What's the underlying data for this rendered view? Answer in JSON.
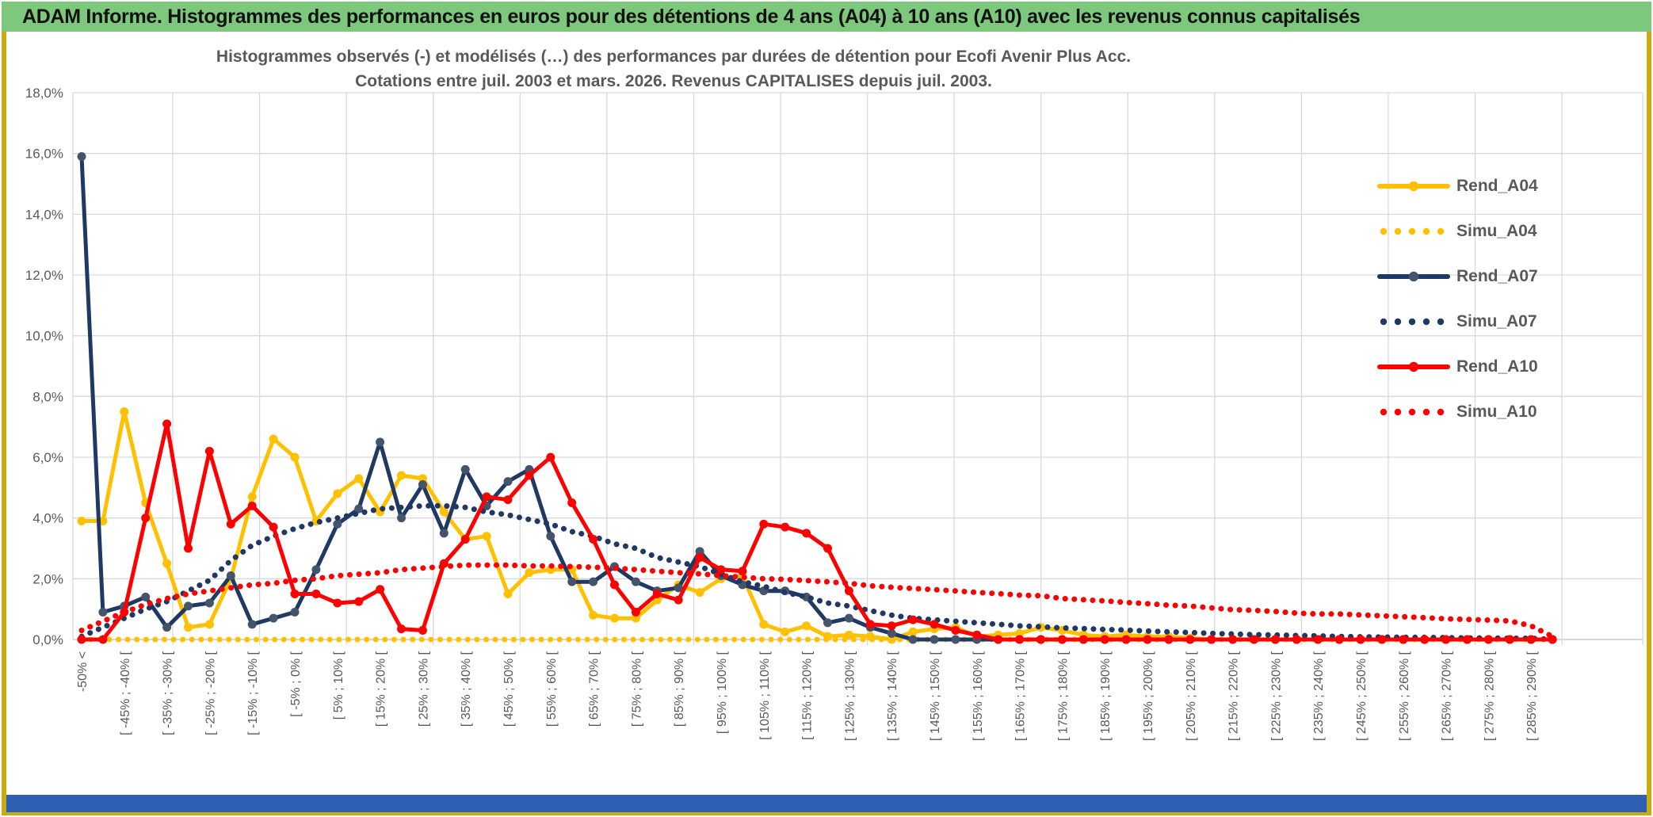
{
  "window": {
    "title": "ADAM Informe. Histogrammes des performances en euros pour des détentions de 4 ans (A04) à 10 ans (A10) avec les revenus connus capitalisés"
  },
  "colors": {
    "header_bg": "#7dc87d",
    "frame": "#c9ac14",
    "footer_bar": "#2f5fb3",
    "grid": "#d9d9d9",
    "axis_line": "#bfbfbf",
    "text": "#595959",
    "gold": "#FFC000",
    "navy": "#1F3864",
    "navy_marker": "#44546A",
    "red": "#FF0000"
  },
  "legend": {
    "items": [
      {
        "label": "Rend_A04",
        "style": "solid",
        "color": "#FFC000",
        "marker": "#FFC000"
      },
      {
        "label": "Simu_A04",
        "style": "dotted",
        "color": "#FFC000"
      },
      {
        "label": "Rend_A07",
        "style": "solid",
        "color": "#1F3864",
        "marker": "#44546A"
      },
      {
        "label": "Simu_A07",
        "style": "dotted",
        "color": "#1F3864"
      },
      {
        "label": "Rend_A10",
        "style": "solid",
        "color": "#FF0000",
        "marker": "#FF0000"
      },
      {
        "label": "Simu_A10",
        "style": "dotted",
        "color": "#FF0000"
      }
    ]
  },
  "chart_data": {
    "type": "line",
    "title_line1": "Histogrammes observés (-) et modélisés (…) des performances par durées de détention pour Ecofi Avenir Plus Acc.",
    "title_line2": "Cotations entre juil. 2003 et mars. 2026. Revenus CAPITALISES depuis juil. 2003.",
    "ylabel": "",
    "xlabel": "",
    "ylim": [
      0,
      18
    ],
    "y_tick_step_percent": 2,
    "y_tick_labels": [
      "0,0%",
      "2,0%",
      "4,0%",
      "6,0%",
      "8,0%",
      "10,0%",
      "12,0%",
      "14,0%",
      "16,0%",
      "18,0%"
    ],
    "grid": true,
    "legend_position": "right-inside",
    "n_bins": 70,
    "x_labels_every": 2,
    "x_labels": [
      "-50% <",
      "[ -45% ; -40% [",
      "[ -35% ; -30% [",
      "[ -25% ; -20% [",
      "[ -15% ; -10% [",
      "[ -5% ; 0% [",
      "[ 5% ; 10% [",
      "[ 15% ; 20% [",
      "[ 25% ; 30% [",
      "[ 35% ; 40% [",
      "[ 45% ; 50% [",
      "[ 55% ; 60% [",
      "[ 65% ; 70% [",
      "[ 75% ; 80% [",
      "[ 85% ; 90% [",
      "[ 95% ; 100% [",
      "[ 105% ; 110% [",
      "[ 115% ; 120% [",
      "[ 125% ; 130% [",
      "[ 135% ; 140% [",
      "[ 145% ; 150% [",
      "[ 155% ; 160% [",
      "[ 165% ; 170% [",
      "[ 175% ; 180% [",
      "[ 185% ; 190% [",
      "[ 195% ; 200% [",
      "[ 205% ; 210% [",
      "[ 215% ; 220% [",
      "[ 225% ; 230% [",
      "[ 235% ; 240% [",
      "[ 245% ; 250% [",
      "[ 255% ; 260% [",
      "[ 265% ; 270% [",
      "[ 275% ; 280% [",
      "[ 285% ; 290% ["
    ],
    "series": [
      {
        "name": "Rend_A04",
        "style": "solid",
        "color": "#FFC000",
        "marker": "#FFC000",
        "values": [
          3.9,
          3.9,
          7.5,
          4.5,
          2.5,
          0.4,
          0.5,
          2.0,
          4.7,
          6.6,
          6.0,
          3.9,
          4.8,
          5.3,
          4.2,
          5.4,
          5.3,
          4.2,
          3.3,
          3.4,
          1.5,
          2.2,
          2.3,
          2.3,
          0.8,
          0.7,
          0.7,
          1.3,
          1.8,
          1.55,
          2.0,
          2.1,
          0.5,
          0.25,
          0.45,
          0.1,
          0.15,
          0.1,
          0.0,
          0.25,
          0.35,
          0.4,
          0.1,
          0.15,
          0.2,
          0.4,
          0.3,
          0.15,
          0.1,
          0.15,
          0.1,
          0.1,
          0.05,
          0,
          0,
          0,
          0,
          0,
          0,
          0,
          0,
          0,
          0,
          0,
          0,
          0,
          0,
          0,
          0,
          0
        ]
      },
      {
        "name": "Simu_A04",
        "style": "dotted",
        "color": "#FFC000",
        "values": [
          0,
          0,
          0,
          0,
          0,
          0,
          0,
          0,
          0,
          0,
          0,
          0,
          0,
          0,
          0,
          0,
          0,
          0,
          0,
          0,
          0,
          0,
          0,
          0,
          0,
          0,
          0,
          0,
          0,
          0,
          0,
          0,
          0,
          0,
          0,
          0,
          0,
          0,
          0,
          0,
          0,
          0,
          0,
          0,
          0,
          0,
          0,
          0,
          0,
          0,
          0,
          0,
          0,
          0,
          0,
          0,
          0,
          0,
          0,
          0,
          0,
          0,
          0,
          0,
          0,
          0,
          0,
          0,
          0,
          0
        ]
      },
      {
        "name": "Rend_A07",
        "style": "solid",
        "color": "#1F3864",
        "marker": "#44546A",
        "values": [
          15.9,
          0.9,
          1.1,
          1.4,
          0.4,
          1.1,
          1.2,
          2.1,
          0.5,
          0.7,
          0.9,
          2.3,
          3.8,
          4.3,
          6.5,
          4.0,
          5.1,
          3.5,
          5.6,
          4.4,
          5.2,
          5.6,
          3.4,
          1.9,
          1.9,
          2.4,
          1.9,
          1.6,
          1.7,
          2.9,
          2.1,
          1.8,
          1.6,
          1.6,
          1.4,
          0.55,
          0.7,
          0.4,
          0.2,
          0,
          0,
          0,
          0,
          0,
          0,
          0,
          0,
          0,
          0,
          0,
          0,
          0,
          0,
          0,
          0,
          0,
          0,
          0,
          0,
          0,
          0,
          0,
          0,
          0,
          0,
          0,
          0,
          0,
          0,
          0
        ]
      },
      {
        "name": "Simu_A07",
        "style": "dotted",
        "color": "#1F3864",
        "values": [
          0.1,
          0.4,
          0.7,
          1.0,
          1.25,
          1.6,
          1.95,
          2.6,
          3.1,
          3.4,
          3.65,
          3.85,
          4.0,
          4.15,
          4.3,
          4.35,
          4.4,
          4.4,
          4.35,
          4.2,
          4.1,
          3.95,
          3.8,
          3.55,
          3.4,
          3.15,
          3.0,
          2.7,
          2.55,
          2.4,
          2.15,
          1.9,
          1.75,
          1.55,
          1.4,
          1.2,
          1.1,
          0.95,
          0.8,
          0.7,
          0.65,
          0.6,
          0.55,
          0.5,
          0.45,
          0.42,
          0.38,
          0.36,
          0.33,
          0.31,
          0.28,
          0.25,
          0.23,
          0.2,
          0.18,
          0.16,
          0.15,
          0.13,
          0.12,
          0.1,
          0.09,
          0.08,
          0.07,
          0.07,
          0.06,
          0.05,
          0.05,
          0.04,
          0.04,
          0.0
        ]
      },
      {
        "name": "Rend_A10",
        "style": "solid",
        "color": "#FF0000",
        "marker": "#FF0000",
        "values": [
          0,
          0,
          0.9,
          4.0,
          7.1,
          3.0,
          6.2,
          3.8,
          4.4,
          3.7,
          1.5,
          1.5,
          1.2,
          1.25,
          1.65,
          0.35,
          0.3,
          2.5,
          3.3,
          4.7,
          4.6,
          5.4,
          6.0,
          4.5,
          3.3,
          1.8,
          0.9,
          1.5,
          1.3,
          2.7,
          2.3,
          2.25,
          3.8,
          3.7,
          3.5,
          3.0,
          1.6,
          0.5,
          0.45,
          0.65,
          0.5,
          0.3,
          0.15,
          0,
          0,
          0,
          0,
          0,
          0,
          0,
          0,
          0,
          0,
          0,
          0,
          0,
          0,
          0,
          0,
          0,
          0,
          0,
          0,
          0,
          0,
          0,
          0,
          0,
          0,
          0
        ]
      },
      {
        "name": "Simu_A10",
        "style": "dotted",
        "color": "#FF0000",
        "values": [
          0.3,
          0.6,
          0.9,
          1.15,
          1.35,
          1.5,
          1.6,
          1.7,
          1.8,
          1.85,
          1.95,
          2.0,
          2.1,
          2.15,
          2.2,
          2.3,
          2.35,
          2.4,
          2.45,
          2.45,
          2.45,
          2.42,
          2.42,
          2.4,
          2.38,
          2.35,
          2.3,
          2.25,
          2.2,
          2.16,
          2.1,
          2.05,
          2.0,
          1.98,
          1.94,
          1.9,
          1.85,
          1.77,
          1.72,
          1.68,
          1.64,
          1.6,
          1.55,
          1.51,
          1.46,
          1.44,
          1.35,
          1.31,
          1.27,
          1.22,
          1.18,
          1.13,
          1.1,
          1.04,
          0.98,
          0.96,
          0.92,
          0.87,
          0.84,
          0.84,
          0.81,
          0.78,
          0.75,
          0.72,
          0.68,
          0.66,
          0.64,
          0.61,
          0.45,
          0.1
        ]
      }
    ]
  }
}
